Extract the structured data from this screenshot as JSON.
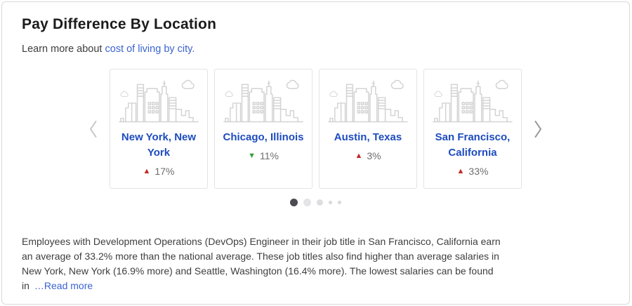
{
  "colors": {
    "accent_link": "#3b63d3",
    "city_link": "#1d4cbe",
    "up_red": "#c62626",
    "down_green": "#38a238"
  },
  "header": {
    "title": "Pay Difference By Location",
    "subtitle_prefix": "Learn more about ",
    "subtitle_link": "cost of living by city."
  },
  "carousel": {
    "prev_icon": "chevron-left-icon",
    "next_icon": "chevron-right-icon",
    "cards": [
      {
        "city": "New York, New York",
        "direction": "up",
        "value": "17%"
      },
      {
        "city": "Chicago, Illinois",
        "direction": "down",
        "value": "11%"
      },
      {
        "city": "Austin, Texas",
        "direction": "up",
        "value": "3%"
      },
      {
        "city": "San Francisco, California",
        "direction": "up",
        "value": "33%"
      }
    ],
    "pagination": {
      "count": 5,
      "active_index": 0
    }
  },
  "footer": {
    "paragraph": "Employees with Development Operations (DevOps) Engineer in their job title in San Francisco, California earn an average of 33.2% more than the national average. These job titles also find higher than average salaries in New York, New York (16.9% more) and Seattle, Washington (16.4% more). The lowest salaries can be found in",
    "read_more": "…Read more"
  }
}
